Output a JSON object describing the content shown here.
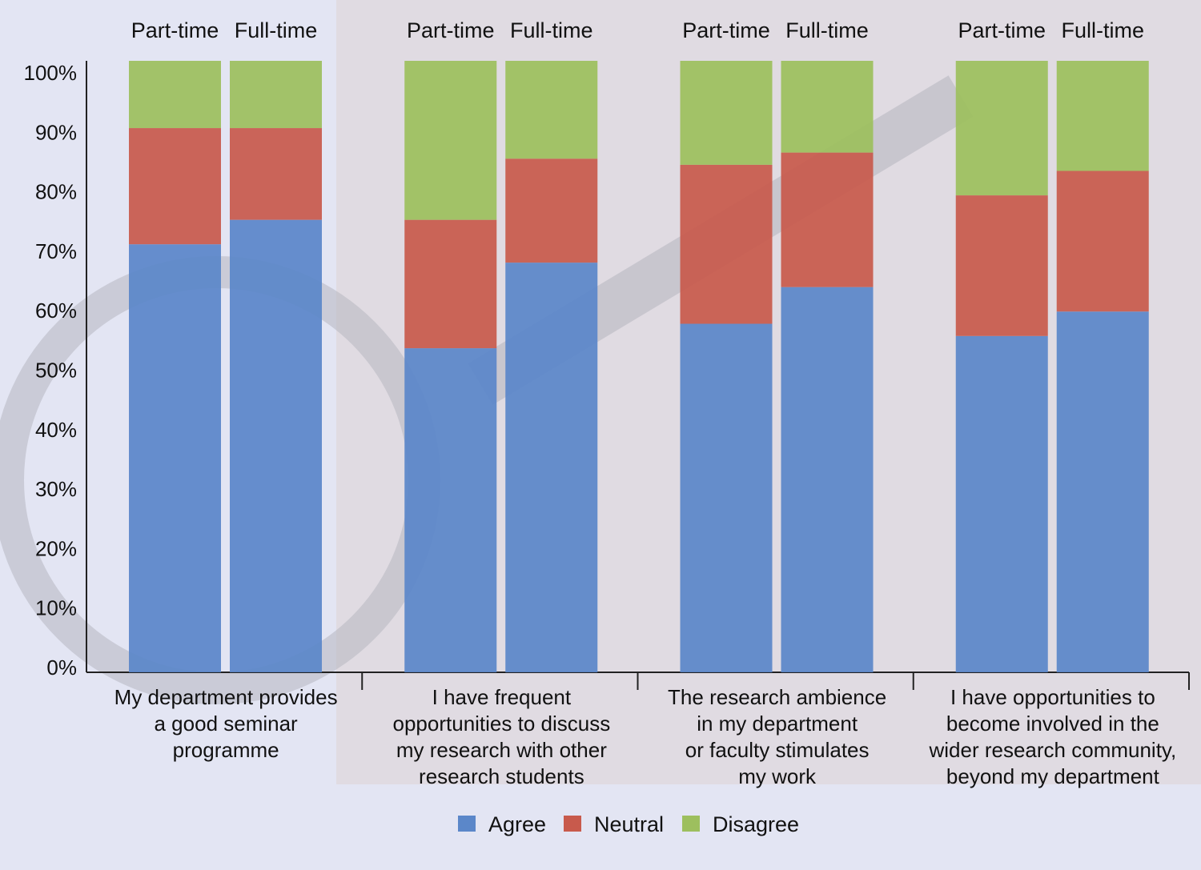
{
  "chart_data": {
    "type": "bar",
    "stacked": true,
    "ylim": [
      0,
      100
    ],
    "yticks": [
      "0%",
      "10%",
      "20%",
      "30%",
      "40%",
      "50%",
      "60%",
      "70%",
      "80%",
      "90%",
      "100%"
    ],
    "bar_labels": [
      "Part-time",
      "Full-time"
    ],
    "categories": [
      [
        "My department provides",
        "a good seminar",
        "programme"
      ],
      [
        "I have frequent",
        "opportunities to discuss",
        "my research with other",
        "research students"
      ],
      [
        "The research ambience",
        "in my department",
        "or faculty stimulates",
        "my work"
      ],
      [
        "I have opportunities to",
        "become involved in the",
        "wider research community,",
        "beyond my department"
      ]
    ],
    "series": [
      {
        "name": "Agree",
        "color": "#5b87c9",
        "values": [
          [
            70,
            74
          ],
          [
            53,
            67
          ],
          [
            57,
            63
          ],
          [
            55,
            59
          ]
        ]
      },
      {
        "name": "Neutral",
        "color": "#c85a4c",
        "values": [
          [
            19,
            15
          ],
          [
            21,
            17
          ],
          [
            26,
            22
          ],
          [
            23,
            23
          ]
        ]
      },
      {
        "name": "Disagree",
        "color": "#9dbf5e",
        "values": [
          [
            11,
            11
          ],
          [
            26,
            16
          ],
          [
            17,
            15
          ],
          [
            22,
            18
          ]
        ]
      }
    ],
    "legend": "bottom-center",
    "grid": false
  }
}
